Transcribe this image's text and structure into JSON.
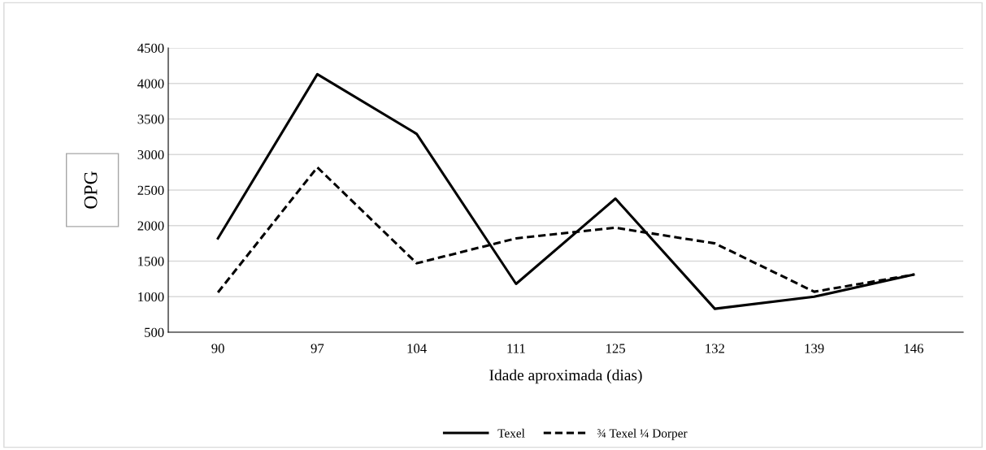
{
  "chart_data": {
    "type": "line",
    "xlabel": "Idade aproximada (dias)",
    "ylabel": "OPG",
    "categories": [
      "90",
      "97",
      "104",
      "111",
      "125",
      "132",
      "139",
      "146"
    ],
    "series": [
      {
        "name": "Texel",
        "color": "#000000",
        "line_style": "solid",
        "values": [
          1820,
          4130,
          3290,
          1180,
          2380,
          830,
          1000,
          1310
        ]
      },
      {
        "name": "¾ Texel ¼ Dorper",
        "color": "#000000",
        "line_style": "dashed",
        "values": [
          1060,
          2820,
          1470,
          1820,
          1970,
          1750,
          1070,
          1310
        ]
      }
    ],
    "ylim": [
      500,
      4500
    ],
    "yticks": [
      500,
      1000,
      1500,
      2000,
      2500,
      3000,
      3500,
      4000,
      4500
    ],
    "grid": "y",
    "legend": "bottom",
    "marker": "none"
  }
}
